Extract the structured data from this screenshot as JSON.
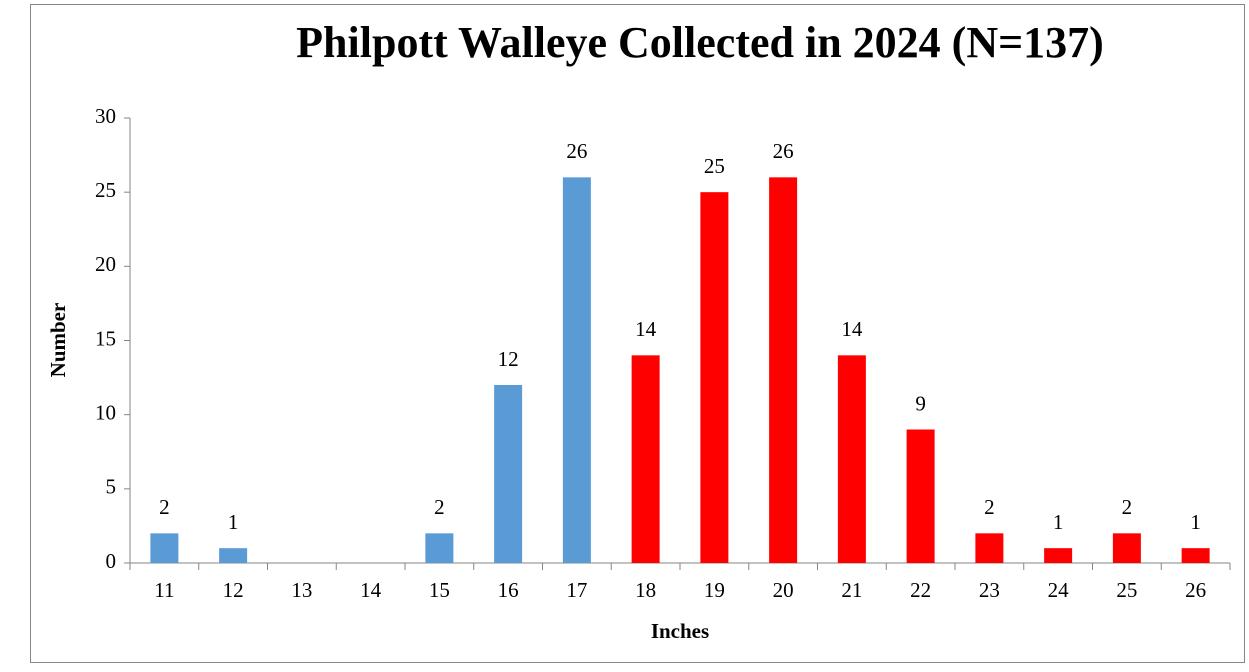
{
  "chart_data": {
    "type": "bar",
    "title": "Philpott Walleye Collected in 2024 (N=137)",
    "x_label": "Inches",
    "y_label": "Number",
    "categories": [
      "11",
      "12",
      "13",
      "14",
      "15",
      "16",
      "17",
      "18",
      "19",
      "20",
      "21",
      "22",
      "23",
      "24",
      "25",
      "26"
    ],
    "values": [
      2,
      1,
      0,
      0,
      2,
      12,
      26,
      14,
      25,
      26,
      14,
      9,
      2,
      1,
      2,
      1
    ],
    "value_labels": [
      "2",
      "1",
      null,
      null,
      "2",
      "12",
      "26",
      "14",
      "25",
      "26",
      "14",
      "9",
      "2",
      "1",
      "2",
      "1"
    ],
    "colors": [
      "#5b9bd5",
      "#5b9bd5",
      "#5b9bd5",
      "#5b9bd5",
      "#5b9bd5",
      "#5b9bd5",
      "#5b9bd5",
      "#ff0000",
      "#ff0000",
      "#ff0000",
      "#ff0000",
      "#ff0000",
      "#ff0000",
      "#ff0000",
      "#ff0000",
      "#ff0000"
    ],
    "ylim": [
      0,
      30
    ],
    "yticks": [
      0,
      5,
      10,
      15,
      20,
      25,
      30
    ],
    "grid": false
  }
}
